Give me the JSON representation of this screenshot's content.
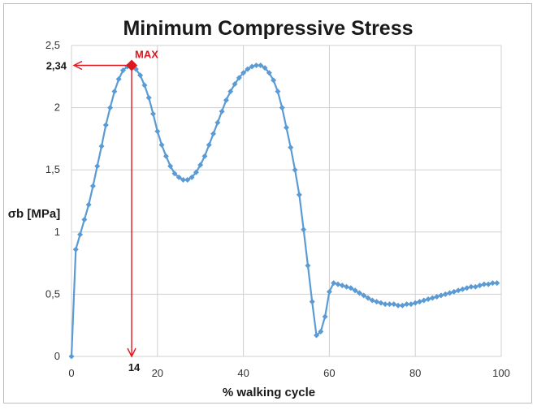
{
  "chart_data": {
    "type": "line",
    "title": "Minimum Compressive Stress",
    "xlabel": "% walking cycle",
    "ylabel": "σb [MPa]",
    "xlim": [
      0,
      100
    ],
    "ylim": [
      0,
      2.5
    ],
    "x_ticks": [
      "0",
      "20",
      "40",
      "60",
      "80",
      "100"
    ],
    "y_ticks": [
      "0",
      "0,5",
      "1",
      "1,5",
      "2",
      "2,5"
    ],
    "grid": true,
    "series": [
      {
        "color": "#5b9bd5",
        "marker": "diamond",
        "points": [
          [
            0,
            0
          ],
          [
            1,
            0.86
          ],
          [
            2,
            0.98
          ],
          [
            3,
            1.1
          ],
          [
            4,
            1.22
          ],
          [
            5,
            1.37
          ],
          [
            6,
            1.53
          ],
          [
            7,
            1.69
          ],
          [
            8,
            1.86
          ],
          [
            9,
            2.0
          ],
          [
            10,
            2.13
          ],
          [
            11,
            2.23
          ],
          [
            12,
            2.3
          ],
          [
            13,
            2.33
          ],
          [
            14,
            2.34
          ],
          [
            15,
            2.31
          ],
          [
            16,
            2.26
          ],
          [
            17,
            2.18
          ],
          [
            18,
            2.08
          ],
          [
            19,
            1.95
          ],
          [
            20,
            1.81
          ],
          [
            21,
            1.7
          ],
          [
            22,
            1.61
          ],
          [
            23,
            1.53
          ],
          [
            24,
            1.47
          ],
          [
            25,
            1.44
          ],
          [
            26,
            1.42
          ],
          [
            27,
            1.42
          ],
          [
            28,
            1.44
          ],
          [
            29,
            1.48
          ],
          [
            30,
            1.54
          ],
          [
            31,
            1.61
          ],
          [
            32,
            1.7
          ],
          [
            33,
            1.79
          ],
          [
            34,
            1.88
          ],
          [
            35,
            1.97
          ],
          [
            36,
            2.06
          ],
          [
            37,
            2.13
          ],
          [
            38,
            2.19
          ],
          [
            39,
            2.24
          ],
          [
            40,
            2.28
          ],
          [
            41,
            2.31
          ],
          [
            42,
            2.33
          ],
          [
            43,
            2.34
          ],
          [
            44,
            2.34
          ],
          [
            45,
            2.32
          ],
          [
            46,
            2.28
          ],
          [
            47,
            2.22
          ],
          [
            48,
            2.13
          ],
          [
            49,
            2.0
          ],
          [
            50,
            1.84
          ],
          [
            51,
            1.68
          ],
          [
            52,
            1.5
          ],
          [
            53,
            1.3
          ],
          [
            54,
            1.02
          ],
          [
            55,
            0.73
          ],
          [
            56,
            0.44
          ],
          [
            57,
            0.17
          ],
          [
            58,
            0.2
          ],
          [
            59,
            0.32
          ],
          [
            60,
            0.52
          ],
          [
            61,
            0.59
          ],
          [
            62,
            0.58
          ],
          [
            63,
            0.57
          ],
          [
            64,
            0.56
          ],
          [
            65,
            0.55
          ],
          [
            66,
            0.53
          ],
          [
            67,
            0.51
          ],
          [
            68,
            0.49
          ],
          [
            69,
            0.47
          ],
          [
            70,
            0.45
          ],
          [
            71,
            0.44
          ],
          [
            72,
            0.43
          ],
          [
            73,
            0.42
          ],
          [
            74,
            0.42
          ],
          [
            75,
            0.42
          ],
          [
            76,
            0.41
          ],
          [
            77,
            0.41
          ],
          [
            78,
            0.42
          ],
          [
            79,
            0.42
          ],
          [
            80,
            0.43
          ],
          [
            81,
            0.44
          ],
          [
            82,
            0.45
          ],
          [
            83,
            0.46
          ],
          [
            84,
            0.47
          ],
          [
            85,
            0.48
          ],
          [
            86,
            0.49
          ],
          [
            87,
            0.5
          ],
          [
            88,
            0.51
          ],
          [
            89,
            0.52
          ],
          [
            90,
            0.53
          ],
          [
            91,
            0.54
          ],
          [
            92,
            0.55
          ],
          [
            93,
            0.56
          ],
          [
            94,
            0.56
          ],
          [
            95,
            0.57
          ],
          [
            96,
            0.58
          ],
          [
            97,
            0.58
          ],
          [
            98,
            0.59
          ],
          [
            99,
            0.59
          ]
        ]
      }
    ],
    "annotations": {
      "max_label": "MAX",
      "max_point": [
        14,
        2.34
      ],
      "max_y_label": "2,34",
      "max_x_label": "14",
      "color": "#e0161e"
    }
  }
}
